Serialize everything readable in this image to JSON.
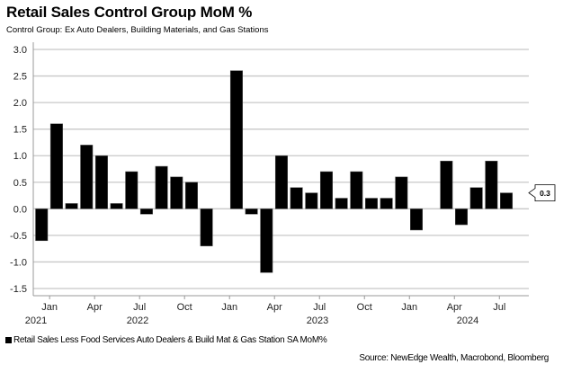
{
  "title": "Retail Sales Control Group MoM %",
  "subtitle": "Control Group: Ex Auto Dealers, Building Materials, and Gas Stations",
  "legend_label": "Retail Sales Less Food Services Auto Dealers & Build Mat & Gas Station SA MoM%",
  "source": "Source: NewEdge Wealth, Macrobond, Bloomberg",
  "colors": {
    "bar": "#000000",
    "grid": "#c8c8c8",
    "axis": "#999999"
  },
  "chart_data": {
    "type": "bar",
    "title": "Retail Sales Control Group MoM %",
    "xlabel": "",
    "ylabel": "",
    "ylim": [
      -1.5,
      3.0
    ],
    "yticks": [
      "3.0",
      "2.5",
      "2.0",
      "1.5",
      "1.0",
      "0.5",
      "0.0",
      "-0.5",
      "-1.0",
      "-1.5"
    ],
    "grid": true,
    "legend_position": "bottom-left",
    "categories": [
      "Dec 2021",
      "Jan 2022",
      "Feb 2022",
      "Mar 2022",
      "Apr 2022",
      "May 2022",
      "Jun 2022",
      "Jul 2022",
      "Aug 2022",
      "Sep 2022",
      "Oct 2022",
      "Nov 2022",
      "Dec 2022",
      "Jan 2023",
      "Feb 2023",
      "Mar 2023",
      "Apr 2023",
      "May 2023",
      "Jun 2023",
      "Jul 2023",
      "Aug 2023",
      "Sep 2023",
      "Oct 2023",
      "Nov 2023",
      "Dec 2023",
      "Jan 2024",
      "Feb 2024",
      "Mar 2024",
      "Apr 2024",
      "May 2024",
      "Jun 2024",
      "Jul 2024"
    ],
    "values": [
      -0.6,
      1.6,
      0.1,
      1.2,
      1.0,
      0.1,
      0.7,
      -0.1,
      0.8,
      0.6,
      0.5,
      -0.7,
      0.0,
      2.6,
      -0.1,
      -1.2,
      1.0,
      0.4,
      0.3,
      0.7,
      0.2,
      0.7,
      0.2,
      0.2,
      0.6,
      -0.4,
      0.0,
      0.9,
      -0.3,
      0.4,
      0.9,
      0.3
    ],
    "month_ticks": [
      {
        "label": "Jan",
        "index": 1
      },
      {
        "label": "Apr",
        "index": 4
      },
      {
        "label": "Jul",
        "index": 7
      },
      {
        "label": "Oct",
        "index": 10
      },
      {
        "label": "Jan",
        "index": 13
      },
      {
        "label": "Apr",
        "index": 16
      },
      {
        "label": "Jul",
        "index": 19
      },
      {
        "label": "Oct",
        "index": 22
      },
      {
        "label": "Jan",
        "index": 25
      },
      {
        "label": "Apr",
        "index": 28
      },
      {
        "label": "Jul",
        "index": 31
      }
    ],
    "year_labels": [
      {
        "label": "2021",
        "index": 0
      },
      {
        "label": "2022",
        "index": 7
      },
      {
        "label": "2023",
        "index": 19
      },
      {
        "label": "2024",
        "index": 29
      }
    ],
    "last_value_label": "0.3"
  }
}
